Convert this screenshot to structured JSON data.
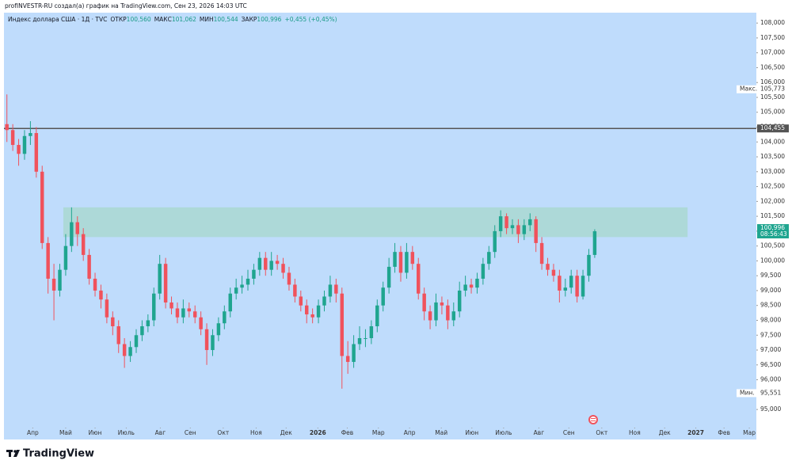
{
  "header": {
    "credit": "profINVESTR-RU создал(а) график на TradingView.com, Сен 23, 2026 14:03 UTC",
    "symbol": "Индекс доллара США · 1Д · TVC",
    "ohlc": [
      {
        "name": "ОТКР",
        "value": "100,560"
      },
      {
        "name": "МАКС",
        "value": "101,062"
      },
      {
        "name": "МИН",
        "value": "100,544"
      },
      {
        "name": "ЗАКР",
        "value": "100,996"
      }
    ],
    "change": "+0,455 (+0,45%)"
  },
  "chart_data": {
    "type": "candlestick",
    "open": [
      104.6,
      104.4,
      103.9,
      103.6,
      104.2,
      104.3,
      103.0,
      100.6,
      99.4,
      99.0,
      99.7,
      100.5,
      101.3,
      100.9,
      100.2,
      99.4,
      99.0,
      98.7,
      98.1,
      97.8,
      97.2,
      96.8,
      97.1,
      97.5,
      97.8,
      98.0,
      98.9,
      99.9,
      98.6,
      98.4,
      98.1,
      98.4,
      98.3,
      98.1,
      97.7,
      97.0,
      97.5,
      97.9,
      98.3,
      98.9,
      99.1,
      99.2,
      99.4,
      99.7,
      100.1,
      99.7,
      100.0,
      99.9,
      99.6,
      99.2,
      98.8,
      98.5,
      98.2,
      98.1,
      98.5,
      98.8,
      99.2,
      98.9,
      96.8,
      96.6,
      97.2,
      97.4,
      97.4,
      97.8,
      98.5,
      99.1,
      99.8,
      100.3,
      99.6,
      100.3,
      99.9,
      98.9,
      98.3,
      98.0,
      98.6,
      98.5,
      98.0,
      98.3,
      99.0,
      99.2,
      99.1,
      99.4,
      99.9,
      100.3,
      101.0,
      101.5,
      101.1,
      101.2,
      100.9,
      101.2,
      101.4,
      100.6,
      99.9,
      99.7,
      99.5,
      99.0,
      99.1,
      99.5,
      98.8,
      99.5,
      100.2
    ],
    "high": [
      105.6,
      104.6,
      104.1,
      104.4,
      104.7,
      104.5,
      103.2,
      100.8,
      99.9,
      99.9,
      100.9,
      101.8,
      101.5,
      101.1,
      100.4,
      99.6,
      99.2,
      98.9,
      98.3,
      98.0,
      97.4,
      97.3,
      97.7,
      98.0,
      98.2,
      99.1,
      100.2,
      100.1,
      98.8,
      98.6,
      98.7,
      98.6,
      98.5,
      98.3,
      97.9,
      97.7,
      98.1,
      98.5,
      99.1,
      99.4,
      99.5,
      99.7,
      99.9,
      100.3,
      100.3,
      100.3,
      100.2,
      100.1,
      99.8,
      99.4,
      99.0,
      98.7,
      98.4,
      98.7,
      99.0,
      99.5,
      99.4,
      99.1,
      97.3,
      97.5,
      97.8,
      97.7,
      98.0,
      98.7,
      99.3,
      100.1,
      100.6,
      100.5,
      100.6,
      100.5,
      100.1,
      99.1,
      98.5,
      98.9,
      98.8,
      98.7,
      98.6,
      99.3,
      99.5,
      99.4,
      99.6,
      100.1,
      100.5,
      101.2,
      101.7,
      101.6,
      101.4,
      101.4,
      101.4,
      101.6,
      101.5,
      100.8,
      100.1,
      99.9,
      99.7,
      99.4,
      99.7,
      99.7,
      99.7,
      100.4,
      101.062
    ],
    "low": [
      104.0,
      103.7,
      103.2,
      103.4,
      103.9,
      102.8,
      100.4,
      98.9,
      98.0,
      98.8,
      99.5,
      100.3,
      100.5,
      100.0,
      99.2,
      98.8,
      98.4,
      97.9,
      97.5,
      96.9,
      96.4,
      96.6,
      96.9,
      97.3,
      97.6,
      97.8,
      98.7,
      98.4,
      98.2,
      97.9,
      97.9,
      98.1,
      97.9,
      97.5,
      96.5,
      96.8,
      97.3,
      97.7,
      98.1,
      98.7,
      98.9,
      99.0,
      99.2,
      99.5,
      99.5,
      99.5,
      99.7,
      99.4,
      99.0,
      98.6,
      98.3,
      97.9,
      97.9,
      97.9,
      98.3,
      98.6,
      98.6,
      95.7,
      96.2,
      96.4,
      97.0,
      97.1,
      97.2,
      97.6,
      98.3,
      98.9,
      99.6,
      99.3,
      99.4,
      99.7,
      98.7,
      98.0,
      97.7,
      97.8,
      98.2,
      97.7,
      97.8,
      98.1,
      98.8,
      98.9,
      98.9,
      99.2,
      99.7,
      100.1,
      100.8,
      100.9,
      100.9,
      100.6,
      100.7,
      101.0,
      100.3,
      99.7,
      99.5,
      99.3,
      98.6,
      98.8,
      98.9,
      98.6,
      98.7,
      99.3,
      100.1
    ],
    "close": [
      104.4,
      103.9,
      103.6,
      104.2,
      104.3,
      103.0,
      100.6,
      99.4,
      99.0,
      99.7,
      100.5,
      101.3,
      100.9,
      100.2,
      99.4,
      99.0,
      98.7,
      98.1,
      97.8,
      97.2,
      96.8,
      97.1,
      97.5,
      97.8,
      98.0,
      98.9,
      99.9,
      98.6,
      98.4,
      98.1,
      98.4,
      98.3,
      98.1,
      97.7,
      97.0,
      97.5,
      97.9,
      98.3,
      98.9,
      99.1,
      99.2,
      99.4,
      99.7,
      100.1,
      99.7,
      100.0,
      99.9,
      99.6,
      99.2,
      98.8,
      98.5,
      98.2,
      98.1,
      98.5,
      98.8,
      99.2,
      98.9,
      96.8,
      96.6,
      97.2,
      97.4,
      97.4,
      97.8,
      98.5,
      99.1,
      99.8,
      100.3,
      99.6,
      100.3,
      99.9,
      98.9,
      98.3,
      98.0,
      98.6,
      98.5,
      98.0,
      98.3,
      99.0,
      99.2,
      99.1,
      99.4,
      99.9,
      100.3,
      101.0,
      101.5,
      101.1,
      101.2,
      100.9,
      101.2,
      101.4,
      100.6,
      99.9,
      99.7,
      99.5,
      99.0,
      99.1,
      99.5,
      98.8,
      99.5,
      100.2,
      100.996
    ],
    "up_color": "#1fa58f",
    "down_color": "#f0525c",
    "background": "#bfdcfc",
    "ylim": [
      94.39,
      108.35
    ],
    "yticks": [
      {
        "value": 95,
        "label": "95,000"
      },
      {
        "value": 95.5,
        "label": "95,500"
      },
      {
        "value": 96,
        "label": "96,000"
      },
      {
        "value": 96.5,
        "label": "96,500"
      },
      {
        "value": 97,
        "label": "97,000"
      },
      {
        "value": 97.5,
        "label": "97,500"
      },
      {
        "value": 98,
        "label": "98,000"
      },
      {
        "value": 98.5,
        "label": "98,500"
      },
      {
        "value": 99,
        "label": "99,000"
      },
      {
        "value": 99.5,
        "label": "99,500"
      },
      {
        "value": 100,
        "label": "100,000"
      },
      {
        "value": 100.5,
        "label": "100,500"
      },
      {
        "value": 101,
        "label": "101,000"
      },
      {
        "value": 101.5,
        "label": "101,500"
      },
      {
        "value": 102,
        "label": "102,000"
      },
      {
        "value": 102.5,
        "label": "102,500"
      },
      {
        "value": 103,
        "label": "103,000"
      },
      {
        "value": 103.5,
        "label": "103,500"
      },
      {
        "value": 104,
        "label": "104,000"
      },
      {
        "value": 104.5,
        "label": "104,500"
      },
      {
        "value": 105,
        "label": "105,000"
      },
      {
        "value": 105.5,
        "label": "105,500"
      },
      {
        "value": 106,
        "label": "106,000"
      },
      {
        "value": 106.5,
        "label": "106,500"
      },
      {
        "value": 107,
        "label": "107,000"
      },
      {
        "value": 107.5,
        "label": "107,500"
      },
      {
        "value": 108,
        "label": "108,000"
      }
    ],
    "xlim": [
      -0.5,
      127.5
    ],
    "xticks": [
      {
        "value": 4.4,
        "label": "Апр"
      },
      {
        "value": 10.0,
        "label": "Май"
      },
      {
        "value": 15.0,
        "label": "Июн"
      },
      {
        "value": 20.3,
        "label": "Июль"
      },
      {
        "value": 26.1,
        "label": "Авг"
      },
      {
        "value": 31.2,
        "label": "Сен"
      },
      {
        "value": 36.8,
        "label": "Окт"
      },
      {
        "value": 42.4,
        "label": "Ноя"
      },
      {
        "value": 47.5,
        "label": "Дек"
      },
      {
        "value": 52.9,
        "label": "2026"
      },
      {
        "value": 57.9,
        "label": "Фев"
      },
      {
        "value": 63.2,
        "label": "Мар"
      },
      {
        "value": 68.5,
        "label": "Апр"
      },
      {
        "value": 73.9,
        "label": "Май"
      },
      {
        "value": 79.1,
        "label": "Июн"
      },
      {
        "value": 84.5,
        "label": "Июль"
      },
      {
        "value": 90.5,
        "label": "Авг"
      },
      {
        "value": 95.6,
        "label": "Сен"
      },
      {
        "value": 101.2,
        "label": "Окт"
      },
      {
        "value": 106.8,
        "label": "Ноя"
      },
      {
        "value": 111.9,
        "label": "Дек"
      },
      {
        "value": 117.2,
        "label": "2027"
      },
      {
        "value": 122.0,
        "label": "Фев"
      },
      {
        "value": 126.3,
        "label": "Мар"
      }
    ],
    "zone": {
      "y": [
        100.8,
        101.8
      ],
      "x": [
        9.6,
        115.8
      ],
      "color": "#a7d8cc"
    },
    "hline": {
      "value": 104.455,
      "label": "104,455",
      "color": "#555555"
    },
    "max_label": {
      "name": "Макс.",
      "value": 105.773,
      "label": "105,773"
    },
    "min_label": {
      "name": "Мин.",
      "value": 95.551,
      "label": "95,551"
    },
    "last_price": {
      "value": 100.996,
      "label": "100,996",
      "countdown": "08:56:43"
    }
  },
  "footer": {
    "brand": "TradingView"
  }
}
